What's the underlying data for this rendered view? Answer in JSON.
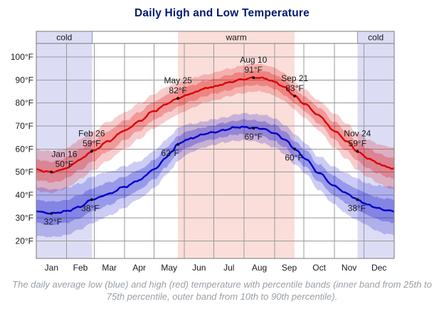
{
  "title": "Daily High and Low Temperature",
  "caption": "The daily average low (blue) and high (red) temperature with percentile bands (inner band from 25th to 75th percentile, outer band from 10th to 90th percentile).",
  "colors": {
    "title": "#001a70",
    "caption": "#9aa0a6",
    "grid": "#999999",
    "border": "#7a7a7a",
    "cold_bg": "#dcdcf5",
    "cold_border": "#9494c8",
    "warm_bg": "#fbdeda",
    "high_line": "#dd0000",
    "low_line": "#0000cc",
    "annotation_text": "#1a1a1a"
  },
  "chart_data": {
    "type": "line",
    "title": "Daily High and Low Temperature",
    "x_axis": {
      "months": [
        "Jan",
        "Feb",
        "Mar",
        "Apr",
        "May",
        "Jun",
        "Jul",
        "Aug",
        "Sep",
        "Oct",
        "Nov",
        "Dec"
      ],
      "month_boundaries_day": [
        0,
        31,
        59,
        90,
        120,
        151,
        181,
        212,
        243,
        273,
        304,
        334,
        365
      ],
      "range_days": [
        0,
        365
      ]
    },
    "y_axis": {
      "unit": "°F",
      "ticks": [
        20,
        30,
        40,
        50,
        60,
        70,
        80,
        90,
        100
      ],
      "range_f": [
        13,
        106
      ],
      "grid": true
    },
    "seasons": [
      {
        "label": "cold",
        "start_day": 0,
        "end_day": 57
      },
      {
        "label": "warm",
        "start_day": 144.5,
        "end_day": 263.5
      },
      {
        "label": "cold",
        "start_day": 327.5,
        "end_day": 365
      }
    ],
    "series": [
      {
        "name": "daily high",
        "color": "#dd0000",
        "points": [
          [
            0,
            51
          ],
          [
            8,
            50.4
          ],
          [
            16,
            50
          ],
          [
            24,
            50.6
          ],
          [
            31,
            51.8
          ],
          [
            45,
            55.5
          ],
          [
            57,
            59
          ],
          [
            74,
            63.5
          ],
          [
            90,
            68
          ],
          [
            105,
            72
          ],
          [
            120,
            76.5
          ],
          [
            134,
            79.8
          ],
          [
            144.5,
            82
          ],
          [
            158,
            84.2
          ],
          [
            172,
            86.2
          ],
          [
            181,
            87.2
          ],
          [
            196,
            88.8
          ],
          [
            210,
            90.3
          ],
          [
            221.5,
            91
          ],
          [
            232,
            90.7
          ],
          [
            243,
            89.3
          ],
          [
            253,
            86.8
          ],
          [
            263.5,
            83
          ],
          [
            274,
            79.5
          ],
          [
            288,
            74.5
          ],
          [
            304,
            68
          ],
          [
            316,
            63.5
          ],
          [
            327.5,
            59
          ],
          [
            338,
            56
          ],
          [
            348,
            53.8
          ],
          [
            357,
            52.3
          ],
          [
            365,
            51.5
          ]
        ],
        "inner_band_halfwidth": [
          [
            0,
            4.5
          ],
          [
            57,
            4.5
          ],
          [
            120,
            4
          ],
          [
            180,
            3.2
          ],
          [
            265,
            3.2
          ],
          [
            328,
            4.2
          ],
          [
            365,
            4.5
          ]
        ],
        "outer_band_halfwidth": [
          [
            0,
            9
          ],
          [
            57,
            8.5
          ],
          [
            120,
            7.5
          ],
          [
            180,
            6
          ],
          [
            265,
            6
          ],
          [
            328,
            8
          ],
          [
            365,
            9
          ]
        ]
      },
      {
        "name": "daily low",
        "color": "#0000cc",
        "points": [
          [
            0,
            33
          ],
          [
            8,
            32.4
          ],
          [
            16,
            32
          ],
          [
            24,
            32.4
          ],
          [
            31,
            33
          ],
          [
            45,
            35
          ],
          [
            57,
            38
          ],
          [
            74,
            40.5
          ],
          [
            90,
            43.5
          ],
          [
            105,
            46.5
          ],
          [
            120,
            51
          ],
          [
            132,
            56
          ],
          [
            138,
            58.8
          ],
          [
            144.5,
            62
          ],
          [
            152,
            63.8
          ],
          [
            160,
            65
          ],
          [
            172,
            66.5
          ],
          [
            181,
            67.3
          ],
          [
            192,
            68.3
          ],
          [
            203,
            69.3
          ],
          [
            212,
            69.6
          ],
          [
            221.5,
            69.2
          ],
          [
            230,
            68.8
          ],
          [
            243,
            67
          ],
          [
            253,
            64.2
          ],
          [
            263.5,
            60
          ],
          [
            274,
            56
          ],
          [
            288,
            49.5
          ],
          [
            304,
            44
          ],
          [
            316,
            40.7
          ],
          [
            327.5,
            38
          ],
          [
            338,
            35.8
          ],
          [
            348,
            34.2
          ],
          [
            357,
            33.4
          ],
          [
            365,
            33
          ]
        ],
        "inner_band_halfwidth": [
          [
            0,
            5
          ],
          [
            57,
            5
          ],
          [
            120,
            4.2
          ],
          [
            180,
            3
          ],
          [
            265,
            3.5
          ],
          [
            328,
            4.5
          ],
          [
            365,
            5
          ]
        ],
        "outer_band_halfwidth": [
          [
            0,
            10.5
          ],
          [
            57,
            10
          ],
          [
            120,
            8
          ],
          [
            180,
            5.5
          ],
          [
            265,
            6.5
          ],
          [
            328,
            9
          ],
          [
            365,
            10.5
          ]
        ]
      }
    ],
    "annotations": [
      {
        "date": "Jan 16",
        "day": 15.5,
        "high": 50,
        "high_label": "50°F",
        "low": 32,
        "low_label": "32°F",
        "high_dx": 18,
        "low_dx": 2
      },
      {
        "date": "Feb 26",
        "day": 56.5,
        "high": 59,
        "high_label": "59°F",
        "low": 38,
        "low_label": "38°F",
        "high_dx": 0,
        "low_dx": -2
      },
      {
        "date": "May 25",
        "day": 144.5,
        "high": 82,
        "high_label": "82°F",
        "low": 62,
        "low_label": "62°F",
        "high_dx": 0,
        "low_dx": -11
      },
      {
        "date": "Aug 10",
        "day": 221.5,
        "high": 91,
        "high_label": "91°F",
        "low": 69,
        "low_label": "69°F",
        "high_dx": 0,
        "low_dx": 0
      },
      {
        "date": "Sep 21",
        "day": 263.5,
        "high": 83,
        "high_label": "83°F",
        "low": 60,
        "low_label": "60°F",
        "high_dx": 0,
        "low_dx": -1
      },
      {
        "date": "Nov 24",
        "day": 327.5,
        "high": 59,
        "high_label": "59°F",
        "low": 38,
        "low_label": "38°F",
        "high_dx": 0,
        "low_dx": -1
      }
    ],
    "legend_position": "none"
  }
}
